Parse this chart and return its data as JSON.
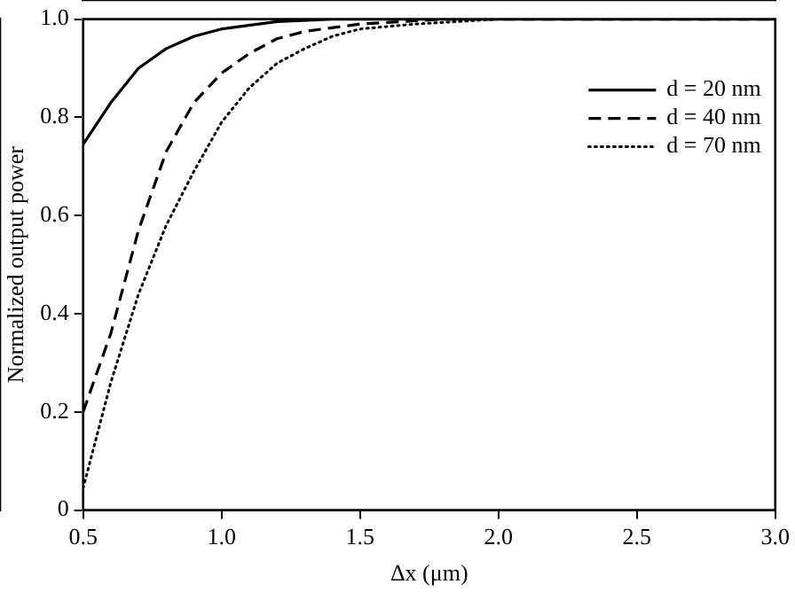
{
  "chart_data": {
    "type": "line",
    "xlabel": "Δx (μm)",
    "ylabel": "Normalized output power",
    "xlim": [
      0.5,
      3.0
    ],
    "xticks": [
      {
        "value": 0.5,
        "label": "0.5"
      },
      {
        "value": 1,
        "label": "1.0"
      },
      {
        "value": 1.5,
        "label": "1.5"
      },
      {
        "value": 2,
        "label": "2.0"
      },
      {
        "value": 2.5,
        "label": "2.5"
      },
      {
        "value": 3,
        "label": "3.0"
      }
    ],
    "ylim": [
      0,
      1
    ],
    "yticks": [
      0,
      {
        "value": 0.2,
        "label": "0.2"
      },
      {
        "value": 0.4,
        "label": "0.4"
      },
      {
        "value": 0.6,
        "label": "0.6"
      },
      {
        "value": 0.8,
        "label": "0.8"
      },
      {
        "value": 1,
        "label": "1.0"
      }
    ],
    "legend": "top right",
    "marker": "none",
    "grid": false,
    "series": [
      {
        "name": "d = 20 nm",
        "color": "#000000",
        "line_style": "solid",
        "x": [
          0.5,
          0.6,
          0.7,
          0.8,
          0.9,
          1.0,
          1.2,
          1.4,
          2.0,
          3.0
        ],
        "values": [
          0.745,
          0.83,
          0.9,
          0.94,
          0.965,
          0.98,
          0.995,
          1.0,
          1.0,
          1.0
        ]
      },
      {
        "name": "d = 40 nm",
        "color": "#000000",
        "line_style": "dashed",
        "x": [
          0.5,
          0.6,
          0.7,
          0.8,
          0.9,
          1.0,
          1.1,
          1.2,
          1.3,
          1.5,
          1.8,
          3.0
        ],
        "values": [
          0.2,
          0.36,
          0.57,
          0.73,
          0.83,
          0.89,
          0.93,
          0.96,
          0.975,
          0.99,
          1.0,
          1.0
        ]
      },
      {
        "name": "d = 70 nm",
        "color": "#000000",
        "line_style": "dotted",
        "x": [
          0.5,
          0.6,
          0.7,
          0.8,
          0.9,
          1.0,
          1.1,
          1.2,
          1.3,
          1.4,
          1.5,
          1.7,
          2.0,
          3.0
        ],
        "values": [
          0.045,
          0.26,
          0.44,
          0.58,
          0.69,
          0.79,
          0.86,
          0.91,
          0.94,
          0.965,
          0.98,
          0.99,
          1.0,
          1.0
        ]
      }
    ]
  }
}
